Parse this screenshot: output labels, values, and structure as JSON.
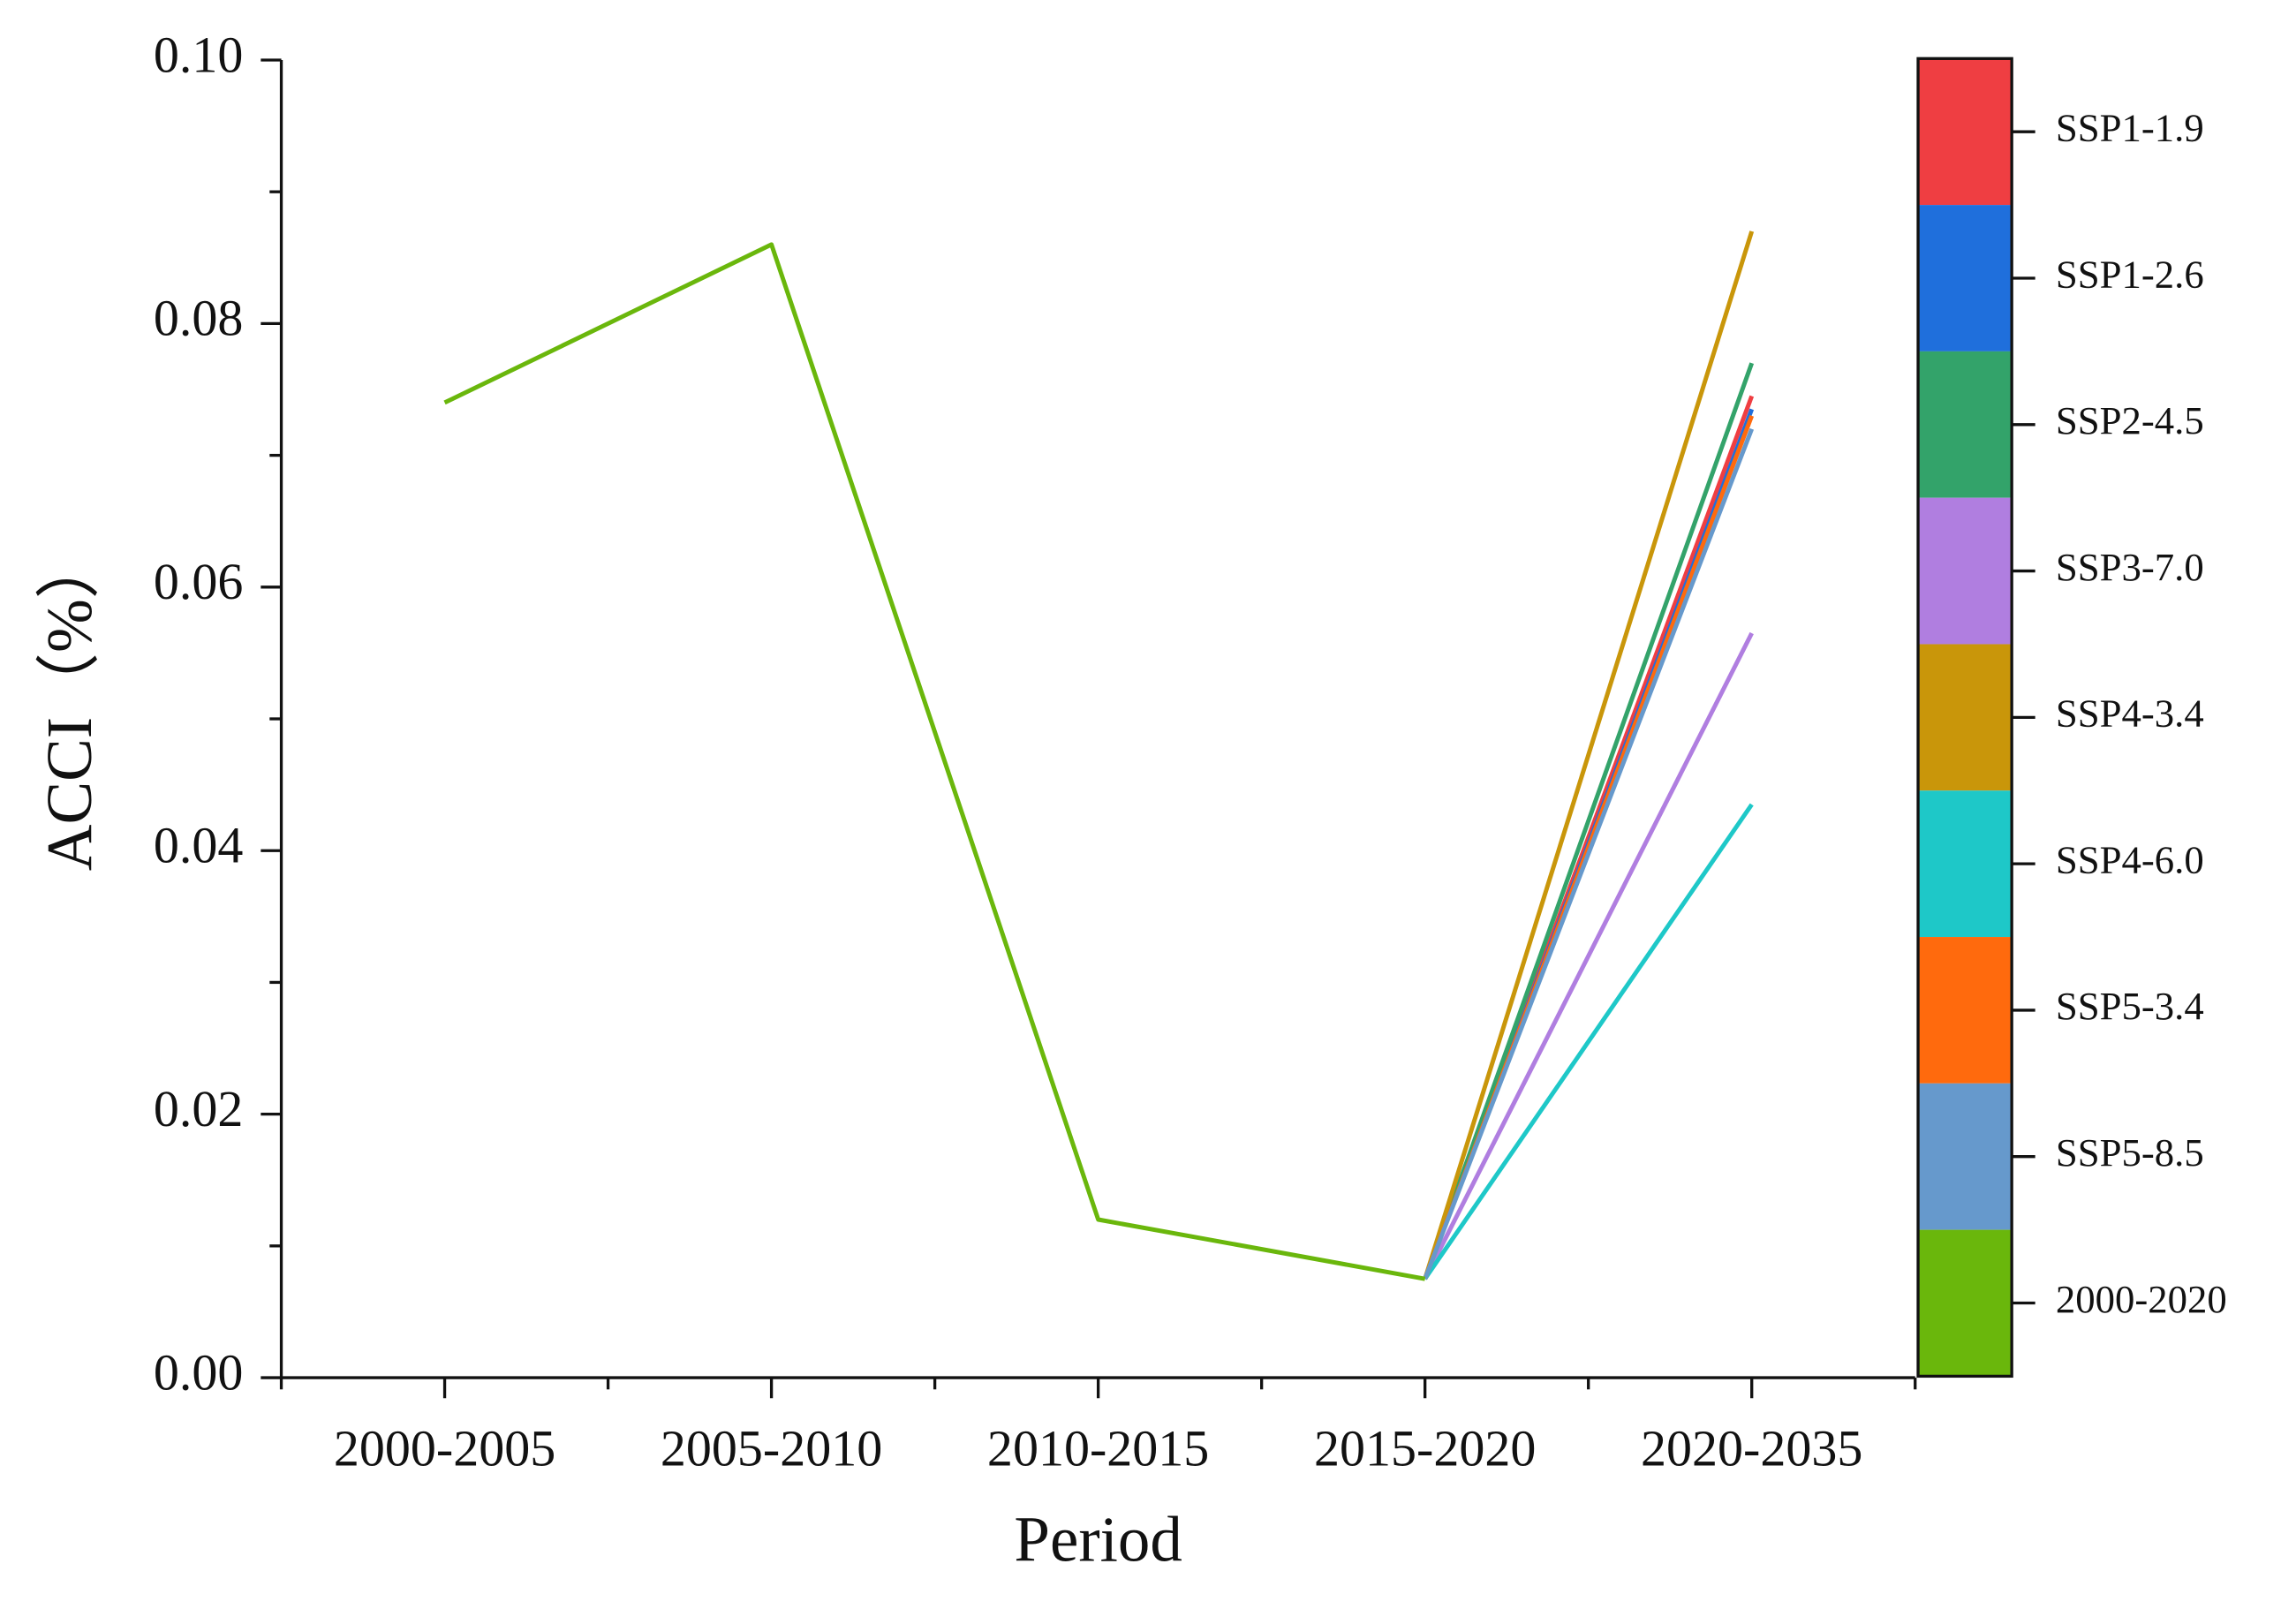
{
  "chart_data": {
    "type": "line",
    "x_label": "Period",
    "y_label": "ACCI（%）",
    "categories": [
      "2000-2005",
      "2005-2010",
      "2010-2015",
      "2015-2020",
      "2020-2035"
    ],
    "series": [
      {
        "name": "SSP1-1.9",
        "color": "#ef3e42",
        "values": [
          null,
          null,
          null,
          0.0075,
          0.0745
        ]
      },
      {
        "name": "SSP1-2.6",
        "color": "#1f6fdc",
        "values": [
          null,
          null,
          null,
          0.0075,
          0.0735
        ]
      },
      {
        "name": "SSP2-4.5",
        "color": "#33a36a",
        "values": [
          null,
          null,
          null,
          0.0075,
          0.077
        ]
      },
      {
        "name": "SSP3-7.0",
        "color": "#b07ee0",
        "values": [
          null,
          null,
          null,
          0.0075,
          0.0565
        ]
      },
      {
        "name": "SSP4-3.4",
        "color": "#c9960a",
        "values": [
          null,
          null,
          null,
          0.0075,
          0.087
        ]
      },
      {
        "name": "SSP4-6.0",
        "color": "#1ec8c8",
        "values": [
          null,
          null,
          null,
          0.0075,
          0.0435
        ]
      },
      {
        "name": "SSP5-3.4",
        "color": "#ff6a0d",
        "values": [
          null,
          null,
          null,
          0.0075,
          0.073
        ]
      },
      {
        "name": "SSP5-8.5",
        "color": "#6699cc",
        "values": [
          null,
          null,
          null,
          0.0075,
          0.072
        ]
      },
      {
        "name": "2000-2020",
        "color": "#6ab70c",
        "values": [
          0.074,
          0.086,
          0.012,
          0.0075,
          null
        ]
      }
    ],
    "ylim": [
      0,
      0.1
    ],
    "yticks": [
      {
        "value": 0,
        "label": "0.00"
      },
      {
        "value": 0.02,
        "label": "0.02"
      },
      {
        "value": 0.04,
        "label": "0.04"
      },
      {
        "value": 0.06,
        "label": "0.06"
      },
      {
        "value": 0.08,
        "label": "0.08"
      },
      {
        "value": 0.1,
        "label": "0.10"
      }
    ],
    "grid": false,
    "legend": "right"
  }
}
